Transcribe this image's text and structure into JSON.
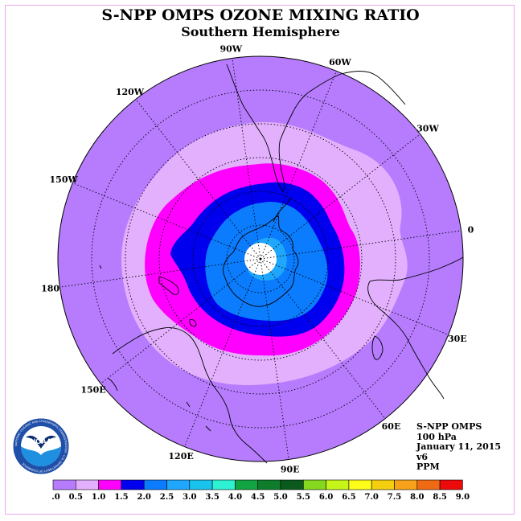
{
  "header": {
    "title": "S-NPP OMPS OZONE MIXING RATIO",
    "subtitle": "Southern Hemisphere"
  },
  "longitude_labels": [
    "90W",
    "60W",
    "30W",
    "0",
    "30E",
    "60E",
    "90E",
    "120E",
    "150E",
    "180",
    "150W",
    "120W"
  ],
  "info": {
    "instrument": "S-NPP OMPS",
    "level": "100 hPa",
    "date": "January 11, 2015",
    "version": "v6",
    "units": "PPM"
  },
  "logo": {
    "text": "NOAA",
    "ring_text": "NATIONAL OCEANIC AND ATMOSPHERIC ADMINISTRATION · U.S. DEPARTMENT OF COMMERCE"
  },
  "colorbar": {
    "ticks": [
      "0.0",
      "0.5",
      "1.0",
      "1.5",
      "2.0",
      "2.5",
      "3.0",
      "3.5",
      "4.0",
      "4.5",
      "5.0",
      "5.5",
      "6.0",
      "6.5",
      "7.0",
      "7.5",
      "8.0",
      "8.5",
      "9.0"
    ],
    "colors": [
      "#b67cfd",
      "#e3b0fd",
      "#ff00ff",
      "#0000ee",
      "#0a7cfd",
      "#1fa7fd",
      "#19c3ee",
      "#2ef0d2",
      "#12a342",
      "#0d7d2c",
      "#0a5a1d",
      "#86d81f",
      "#c6f51a",
      "#fdfd1a",
      "#f3cf10",
      "#f7a21a",
      "#ef6a12",
      "#ed0a0a",
      "#c80a12",
      "#7e4d3c"
    ]
  },
  "colors": {
    "background": "#b67cfd",
    "ring_0_5": "#e3b0fd",
    "ring_1_0": "#ff00ff",
    "ring_1_5": "#0000ee",
    "ring_2_0": "#0a7cfd",
    "ring_2_5": "#1fa7fd",
    "pole_hole": "#ffffff"
  }
}
